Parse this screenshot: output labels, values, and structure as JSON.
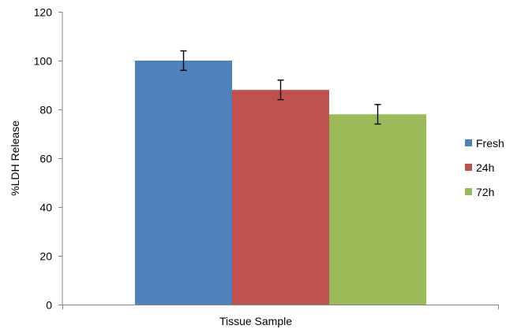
{
  "chart_data": {
    "type": "bar",
    "title": "",
    "xlabel": "Tissue Sample",
    "ylabel": "%LDH Release",
    "ylim": [
      0,
      120
    ],
    "yticks": [
      0,
      20,
      40,
      60,
      80,
      100,
      120
    ],
    "categories": [
      ""
    ],
    "series": [
      {
        "name": "Fresh",
        "values": [
          100
        ],
        "error": [
          4
        ],
        "color": "#4F81BD"
      },
      {
        "name": "24h",
        "values": [
          88
        ],
        "error": [
          4
        ],
        "color": "#C0504D"
      },
      {
        "name": "72h",
        "values": [
          78
        ],
        "error": [
          4
        ],
        "color": "#9BBB59"
      }
    ],
    "grid": false,
    "legend": "right"
  }
}
